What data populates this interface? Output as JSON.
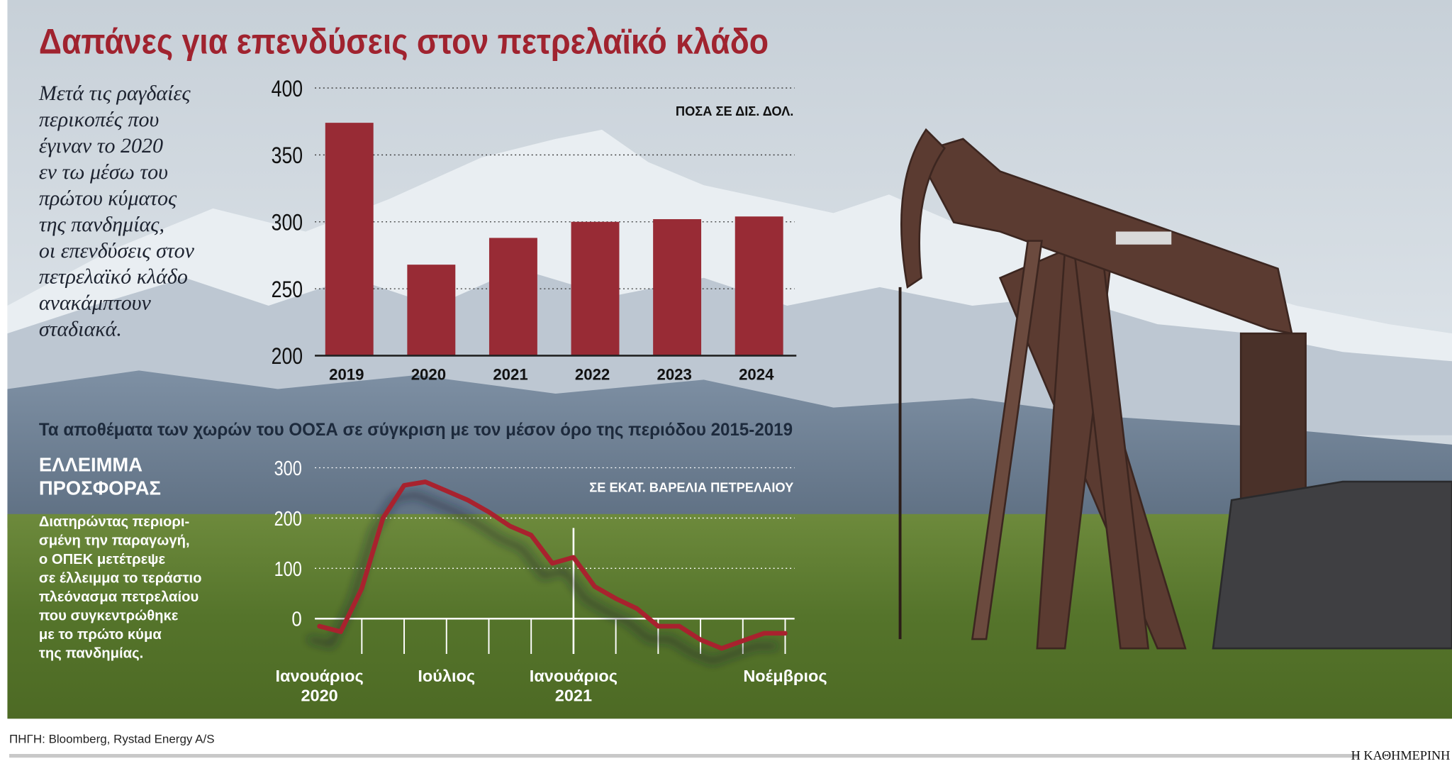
{
  "title": "Δαπάνες για επενδύσεις στον πετρελαϊκό κλάδο",
  "description": [
    "Μετά τις ραγδαίες",
    "περικοπές που",
    "έγιναν το 2020",
    "εν τω μέσω του",
    "πρώτου κύματος",
    "της πανδημίας,",
    "οι επενδύσεις στον",
    "πετρελαϊκό κλάδο",
    "ανακάμπτουν",
    "σταδιακά."
  ],
  "source": "ΠΗΓΗ: Bloomberg, Rystad Energy A/S",
  "publisher": "Η ΚΑΘΗΜΕΡΙΝΗ",
  "chart_data": [
    {
      "type": "bar",
      "unit_label": "ΠΟΣΑ ΣΕ ΔΙΣ. ΔΟΛ.",
      "categories": [
        "2019",
        "2020",
        "2021",
        "2022",
        "2023",
        "2024"
      ],
      "values": [
        374,
        268,
        288,
        300,
        302,
        304
      ],
      "color": "#982b35",
      "ylim": [
        200,
        400
      ],
      "yticks": [
        200,
        250,
        300,
        350,
        400
      ],
      "grid": true
    },
    {
      "type": "line",
      "title": "Τα αποθέματα των χωρών του ΟΟΣΑ σε σύγκριση με τον μέσον όρο της περιόδου 2015-2019",
      "unit_label": "ΣΕ ΕΚΑΤ. ΒΑΡΕΛΙΑ ΠΕΤΡΕΛΑΙΟΥ",
      "heading": [
        "ΕΛΛΕΙΜΜΑ",
        "ΠΡΟΣΦΟΡΑΣ"
      ],
      "text": [
        "Διατηρώντας περιορι-",
        "σμένη την παραγωγή,",
        "ο ΟΠΕΚ μετέτρεψε",
        "σε έλλειμμα το τεράστιο",
        "πλεόνασμα πετρελαίου",
        "που συγκεντρώθηκε",
        "με το πρώτο κύμα",
        "της πανδημίας."
      ],
      "categories": [
        "Ιανουάριος\n2020",
        null,
        null,
        null,
        null,
        null,
        "Ιούλιος",
        null,
        null,
        null,
        null,
        null,
        "Ιανουάριος\n2021",
        null,
        null,
        null,
        null,
        null,
        null,
        null,
        null,
        null,
        "Νοέμβριος"
      ],
      "values": [
        -15,
        -26,
        60,
        200,
        265,
        272,
        254,
        236,
        212,
        184,
        166,
        110,
        122,
        64,
        40,
        20,
        -15,
        -15,
        -42,
        -59,
        -44,
        -29,
        -29
      ],
      "color": "#a8202e",
      "ylim": [
        -60,
        300
      ],
      "yticks": [
        0,
        100,
        200,
        300
      ],
      "grid": true
    }
  ]
}
